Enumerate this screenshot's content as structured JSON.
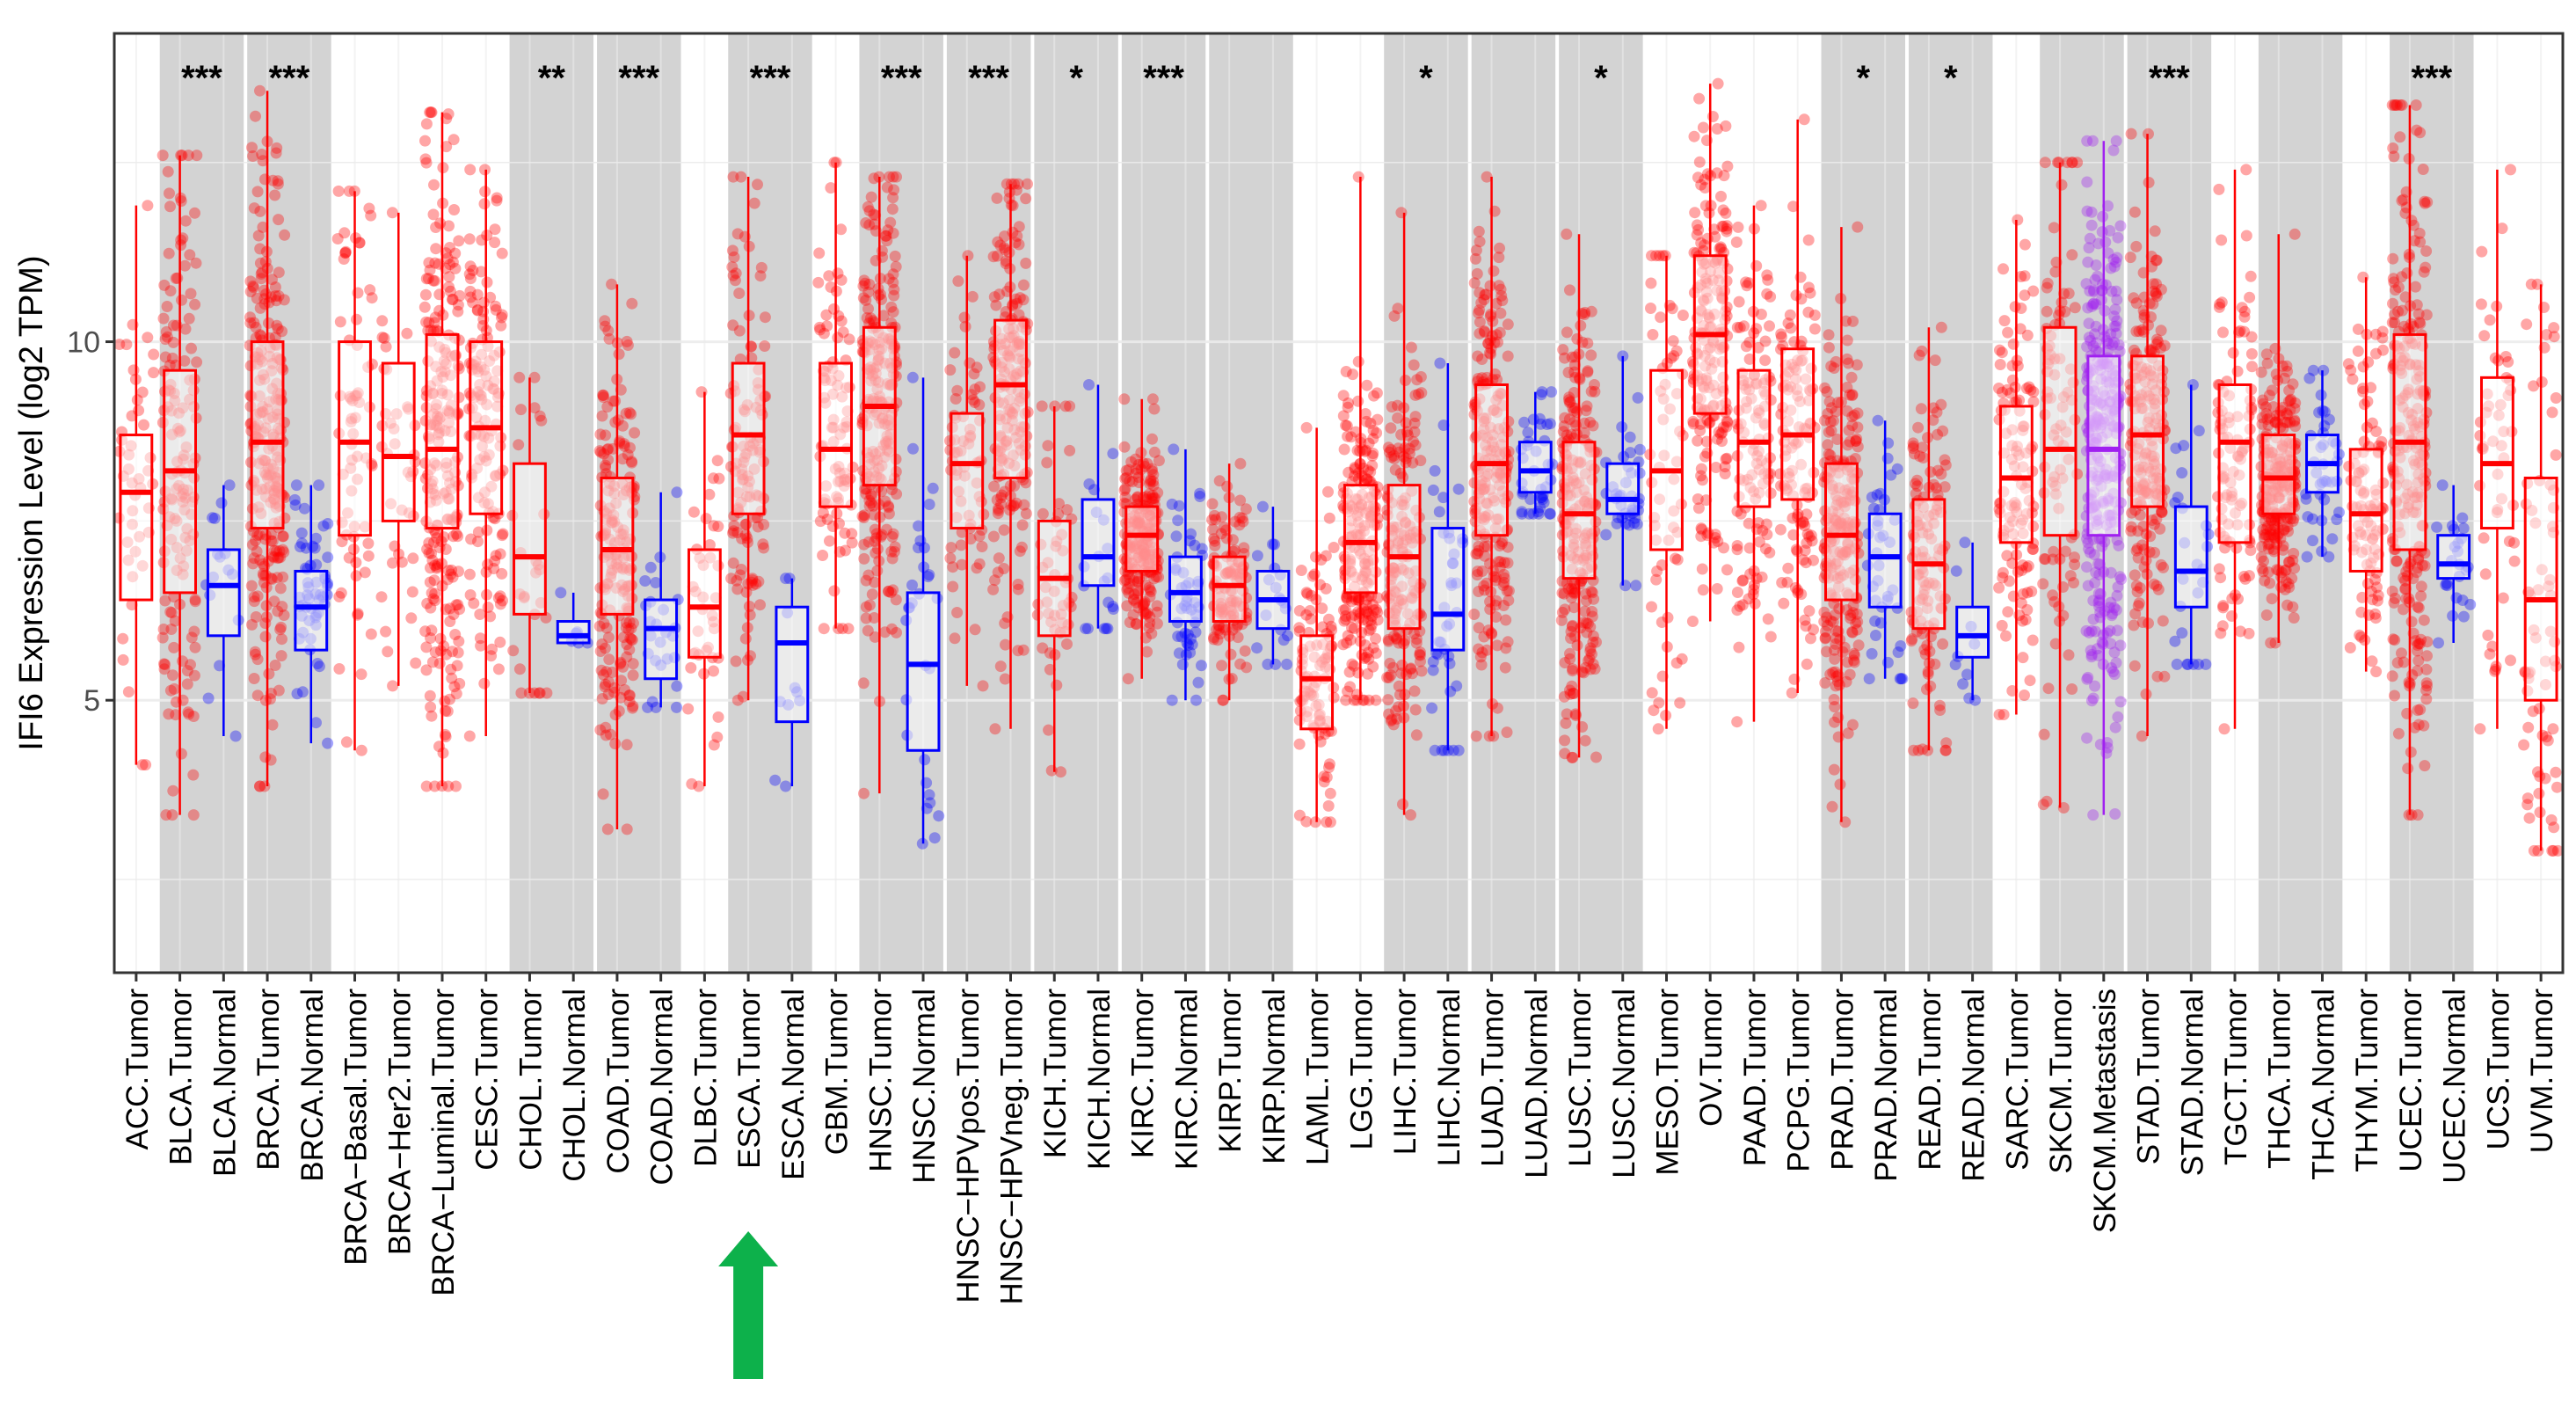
{
  "chart_data": {
    "type": "box",
    "ylabel": "IFI6 Expression Level (log2 TPM)",
    "xlabel": "",
    "ylim": [
      1.2,
      14.3
    ],
    "yticks": [
      5,
      10
    ],
    "grid": true,
    "arrow": {
      "pointing_to": "ESCA.Tumor",
      "color": "#0db14b"
    },
    "colors": {
      "tumor": "#ff0000",
      "normal": "#0000ff",
      "metastasis": "#a020f0",
      "shade": "#d3d3d3",
      "panel_border": "#333333",
      "grid": "#ebebeb"
    },
    "categories": [
      "ACC.Tumor",
      "BLCA.Tumor",
      "BLCA.Normal",
      "BRCA.Tumor",
      "BRCA.Normal",
      "BRCA−Basal.Tumor",
      "BRCA−Her2.Tumor",
      "BRCA−Luminal.Tumor",
      "CESC.Tumor",
      "CHOL.Tumor",
      "CHOL.Normal",
      "COAD.Tumor",
      "COAD.Normal",
      "DLBC.Tumor",
      "ESCA.Tumor",
      "ESCA.Normal",
      "GBM.Tumor",
      "HNSC.Tumor",
      "HNSC.Normal",
      "HNSC−HPVpos.Tumor",
      "HNSC−HPVneg.Tumor",
      "KICH.Tumor",
      "KICH.Normal",
      "KIRC.Tumor",
      "KIRC.Normal",
      "KIRP.Tumor",
      "KIRP.Normal",
      "LAML.Tumor",
      "LGG.Tumor",
      "LIHC.Tumor",
      "LIHC.Normal",
      "LUAD.Tumor",
      "LUAD.Normal",
      "LUSC.Tumor",
      "LUSC.Normal",
      "MESO.Tumor",
      "OV.Tumor",
      "PAAD.Tumor",
      "PCPG.Tumor",
      "PRAD.Tumor",
      "PRAD.Normal",
      "READ.Tumor",
      "READ.Normal",
      "SARC.Tumor",
      "SKCM.Tumor",
      "SKCM.Metastasis",
      "STAD.Tumor",
      "STAD.Normal",
      "TGCT.Tumor",
      "THCA.Tumor",
      "THCA.Normal",
      "THYM.Tumor",
      "UCEC.Tumor",
      "UCEC.Normal",
      "UCS.Tumor",
      "UVM.Tumor"
    ],
    "groups": [
      "tumor",
      "tumor",
      "normal",
      "tumor",
      "normal",
      "tumor",
      "tumor",
      "tumor",
      "tumor",
      "tumor",
      "normal",
      "tumor",
      "normal",
      "tumor",
      "tumor",
      "normal",
      "tumor",
      "tumor",
      "normal",
      "tumor",
      "tumor",
      "tumor",
      "normal",
      "tumor",
      "normal",
      "tumor",
      "normal",
      "tumor",
      "tumor",
      "tumor",
      "normal",
      "tumor",
      "normal",
      "tumor",
      "normal",
      "tumor",
      "tumor",
      "tumor",
      "tumor",
      "tumor",
      "normal",
      "tumor",
      "normal",
      "tumor",
      "tumor",
      "metastasis",
      "tumor",
      "normal",
      "tumor",
      "tumor",
      "normal",
      "tumor",
      "tumor",
      "normal",
      "tumor",
      "tumor"
    ],
    "boxes": [
      {
        "min": 4.1,
        "q1": 6.4,
        "median": 7.9,
        "q3": 8.7,
        "max": 11.9
      },
      {
        "min": 3.4,
        "q1": 6.5,
        "median": 8.2,
        "q3": 9.6,
        "max": 12.6
      },
      {
        "min": 4.5,
        "q1": 5.9,
        "median": 6.6,
        "q3": 7.1,
        "max": 8.0
      },
      {
        "min": 3.8,
        "q1": 7.4,
        "median": 8.6,
        "q3": 10.0,
        "max": 13.5
      },
      {
        "min": 4.4,
        "q1": 5.7,
        "median": 6.3,
        "q3": 6.8,
        "max": 8.0
      },
      {
        "min": 4.3,
        "q1": 7.3,
        "median": 8.6,
        "q3": 10.0,
        "max": 12.1
      },
      {
        "min": 5.2,
        "q1": 7.5,
        "median": 8.4,
        "q3": 9.7,
        "max": 11.8
      },
      {
        "min": 3.8,
        "q1": 7.4,
        "median": 8.5,
        "q3": 10.1,
        "max": 13.2
      },
      {
        "min": 4.5,
        "q1": 7.6,
        "median": 8.8,
        "q3": 10.0,
        "max": 12.4
      },
      {
        "min": 5.1,
        "q1": 6.2,
        "median": 7.0,
        "q3": 8.3,
        "max": 9.5
      },
      {
        "min": 5.8,
        "q1": 5.8,
        "median": 5.9,
        "q3": 6.1,
        "max": 6.5
      },
      {
        "min": 3.2,
        "q1": 6.2,
        "median": 7.1,
        "q3": 8.1,
        "max": 10.8
      },
      {
        "min": 4.9,
        "q1": 5.3,
        "median": 6.0,
        "q3": 6.4,
        "max": 7.9
      },
      {
        "min": 3.8,
        "q1": 5.6,
        "median": 6.3,
        "q3": 7.1,
        "max": 9.3
      },
      {
        "min": 5.0,
        "q1": 7.6,
        "median": 8.7,
        "q3": 9.7,
        "max": 12.3
      },
      {
        "min": 3.8,
        "q1": 4.7,
        "median": 5.8,
        "q3": 6.3,
        "max": 6.7
      },
      {
        "min": 6.0,
        "q1": 7.7,
        "median": 8.5,
        "q3": 9.7,
        "max": 12.5
      },
      {
        "min": 3.7,
        "q1": 8.0,
        "median": 9.1,
        "q3": 10.2,
        "max": 12.3
      },
      {
        "min": 3.0,
        "q1": 4.3,
        "median": 5.5,
        "q3": 6.5,
        "max": 9.5
      },
      {
        "min": 5.2,
        "q1": 7.4,
        "median": 8.3,
        "q3": 9.0,
        "max": 11.2
      },
      {
        "min": 4.6,
        "q1": 8.1,
        "median": 9.4,
        "q3": 10.3,
        "max": 12.2
      },
      {
        "min": 4.0,
        "q1": 5.9,
        "median": 6.7,
        "q3": 7.5,
        "max": 9.1
      },
      {
        "min": 6.0,
        "q1": 6.6,
        "median": 7.0,
        "q3": 7.8,
        "max": 9.4
      },
      {
        "min": 5.3,
        "q1": 6.8,
        "median": 7.3,
        "q3": 7.7,
        "max": 9.2
      },
      {
        "min": 5.0,
        "q1": 6.1,
        "median": 6.5,
        "q3": 7.0,
        "max": 8.5
      },
      {
        "min": 5.0,
        "q1": 6.1,
        "median": 6.6,
        "q3": 7.0,
        "max": 8.3
      },
      {
        "min": 5.5,
        "q1": 6.0,
        "median": 6.4,
        "q3": 6.8,
        "max": 7.7
      },
      {
        "min": 3.3,
        "q1": 4.6,
        "median": 5.3,
        "q3": 5.9,
        "max": 8.8
      },
      {
        "min": 5.0,
        "q1": 6.5,
        "median": 7.2,
        "q3": 8.0,
        "max": 12.3
      },
      {
        "min": 3.4,
        "q1": 6.0,
        "median": 7.0,
        "q3": 8.0,
        "max": 11.8
      },
      {
        "min": 4.3,
        "q1": 5.7,
        "median": 6.2,
        "q3": 7.4,
        "max": 9.7
      },
      {
        "min": 4.5,
        "q1": 7.3,
        "median": 8.3,
        "q3": 9.4,
        "max": 12.3
      },
      {
        "min": 7.6,
        "q1": 7.9,
        "median": 8.2,
        "q3": 8.6,
        "max": 9.3
      },
      {
        "min": 4.2,
        "q1": 6.7,
        "median": 7.6,
        "q3": 8.6,
        "max": 11.5
      },
      {
        "min": 6.6,
        "q1": 7.6,
        "median": 7.8,
        "q3": 8.3,
        "max": 9.8
      },
      {
        "min": 4.6,
        "q1": 7.1,
        "median": 8.2,
        "q3": 9.6,
        "max": 11.2
      },
      {
        "min": 6.1,
        "q1": 9.0,
        "median": 10.1,
        "q3": 11.2,
        "max": 13.6
      },
      {
        "min": 4.7,
        "q1": 7.7,
        "median": 8.6,
        "q3": 9.6,
        "max": 11.9
      },
      {
        "min": 5.1,
        "q1": 7.8,
        "median": 8.7,
        "q3": 9.9,
        "max": 13.1
      },
      {
        "min": 3.3,
        "q1": 6.4,
        "median": 7.3,
        "q3": 8.3,
        "max": 11.6
      },
      {
        "min": 5.3,
        "q1": 6.3,
        "median": 7.0,
        "q3": 7.6,
        "max": 8.9
      },
      {
        "min": 4.3,
        "q1": 6.0,
        "median": 6.9,
        "q3": 7.8,
        "max": 10.2
      },
      {
        "min": 5.0,
        "q1": 5.6,
        "median": 5.9,
        "q3": 6.3,
        "max": 7.2
      },
      {
        "min": 4.8,
        "q1": 7.2,
        "median": 8.1,
        "q3": 9.1,
        "max": 11.7
      },
      {
        "min": 3.5,
        "q1": 7.3,
        "median": 8.5,
        "q3": 10.2,
        "max": 12.5
      },
      {
        "min": 3.4,
        "q1": 7.3,
        "median": 8.5,
        "q3": 9.8,
        "max": 12.8
      },
      {
        "min": 4.5,
        "q1": 7.7,
        "median": 8.7,
        "q3": 9.8,
        "max": 12.9
      },
      {
        "min": 5.5,
        "q1": 6.3,
        "median": 6.8,
        "q3": 7.7,
        "max": 9.4
      },
      {
        "min": 4.6,
        "q1": 7.2,
        "median": 8.6,
        "q3": 9.4,
        "max": 12.4
      },
      {
        "min": 5.8,
        "q1": 7.6,
        "median": 8.1,
        "q3": 8.7,
        "max": 11.5
      },
      {
        "min": 7.0,
        "q1": 7.9,
        "median": 8.3,
        "q3": 8.7,
        "max": 9.6
      },
      {
        "min": 5.4,
        "q1": 6.8,
        "median": 7.6,
        "q3": 8.5,
        "max": 10.9
      },
      {
        "min": 3.4,
        "q1": 7.1,
        "median": 8.6,
        "q3": 10.1,
        "max": 13.3
      },
      {
        "min": 5.8,
        "q1": 6.7,
        "median": 6.9,
        "q3": 7.3,
        "max": 8.0
      },
      {
        "min": 4.6,
        "q1": 7.4,
        "median": 8.3,
        "q3": 9.5,
        "max": 12.4
      },
      {
        "min": 2.9,
        "q1": 5.0,
        "median": 6.4,
        "q3": 8.1,
        "max": 10.8
      }
    ],
    "point_counts": [
      45,
      150,
      16,
      260,
      55,
      70,
      40,
      240,
      140,
      28,
      6,
      190,
      26,
      40,
      120,
      10,
      90,
      240,
      30,
      70,
      190,
      50,
      20,
      220,
      50,
      120,
      20,
      100,
      220,
      180,
      40,
      230,
      40,
      230,
      40,
      60,
      200,
      120,
      120,
      230,
      40,
      120,
      10,
      120,
      90,
      300,
      200,
      26,
      100,
      240,
      40,
      100,
      250,
      24,
      50,
      70
    ],
    "shaded_pairs": [
      [
        1,
        2
      ],
      [
        3,
        4
      ],
      [
        9,
        10
      ],
      [
        11,
        12
      ],
      [
        14,
        15
      ],
      [
        17,
        18
      ],
      [
        19,
        20
      ],
      [
        21,
        22
      ],
      [
        23,
        24
      ],
      [
        25,
        26
      ],
      [
        29,
        30
      ],
      [
        31,
        32
      ],
      [
        33,
        34
      ],
      [
        39,
        40
      ],
      [
        41,
        42
      ],
      [
        44,
        45
      ],
      [
        46,
        47
      ],
      [
        49,
        50
      ],
      [
        52,
        53
      ]
    ],
    "annotations": [
      {
        "pair": [
          1,
          2
        ],
        "text": "***"
      },
      {
        "pair": [
          3,
          4
        ],
        "text": "***"
      },
      {
        "pair": [
          9,
          10
        ],
        "text": "**"
      },
      {
        "pair": [
          11,
          12
        ],
        "text": "***"
      },
      {
        "pair": [
          14,
          15
        ],
        "text": "***"
      },
      {
        "pair": [
          17,
          18
        ],
        "text": "***"
      },
      {
        "pair": [
          19,
          20
        ],
        "text": "***"
      },
      {
        "pair": [
          21,
          22
        ],
        "text": "*"
      },
      {
        "pair": [
          23,
          24
        ],
        "text": "***"
      },
      {
        "pair": [
          29,
          30
        ],
        "text": "*"
      },
      {
        "pair": [
          33,
          34
        ],
        "text": "*"
      },
      {
        "pair": [
          39,
          40
        ],
        "text": "*"
      },
      {
        "pair": [
          41,
          42
        ],
        "text": "*"
      },
      {
        "pair": [
          46,
          47
        ],
        "text": "***"
      },
      {
        "pair": [
          52,
          53
        ],
        "text": "***"
      }
    ]
  }
}
